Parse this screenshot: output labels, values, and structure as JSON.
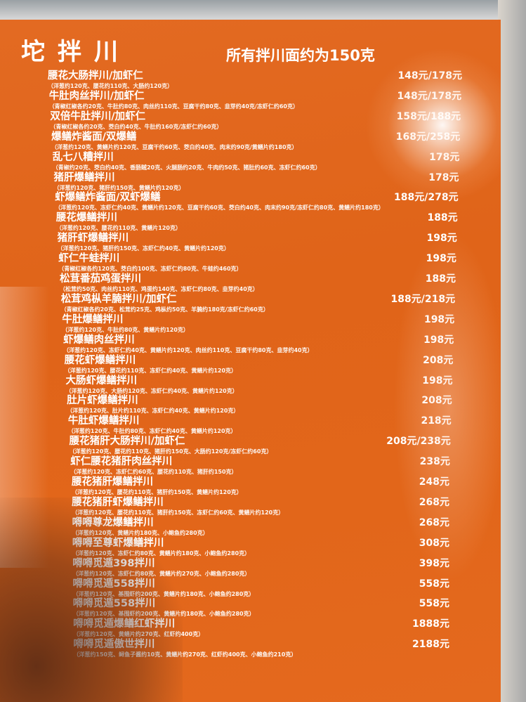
{
  "header": {
    "title": "坨拌川",
    "subtitle": "所有拌川面约为150克"
  },
  "colors": {
    "background": "#e06419",
    "text": "#ffffff"
  },
  "items": [
    {
      "name": "腰花大肠拌川/加虾仁",
      "desc": "（洋葱约120克、腰花约110克、大肠约120克）",
      "price": "148元/178元"
    },
    {
      "name": "牛肚肉丝拌川/加虾仁",
      "desc": "（青椒红椒各约20克、牛肚约80克、肉丝约110克、豆腐干约80克、韭芽约40克/冻虾仁约60克）",
      "price": "148元/178元"
    },
    {
      "name": "双倍牛肚拌川/加虾仁",
      "desc": "（青椒红椒各约20克、茭白约40克、牛肚约160克/冻虾仁约60克）",
      "price": "158元/188元"
    },
    {
      "name": "爆鳝炸酱面/双爆鳝",
      "desc": "（洋葱约120克、黄鳝片约120克、豆腐干约60克、茭白约40克、肉末约90克/黄鳝片约180克）",
      "price": "168元/258元"
    },
    {
      "name": "乱七八糟拌川",
      "desc": "（青椒约20克、茭白约40克、香肠贼20克、火腿肠约20克、牛肉约50克、猪肚约60克、冻虾仁约60克）",
      "price": "178元"
    },
    {
      "name": "猪肝爆鳝拌川",
      "desc": "（洋葱约120克、猪肝约150克、黄鳝片约120克）",
      "price": "178元"
    },
    {
      "name": "虾爆鳝炸酱面/双虾爆鳝",
      "desc": "（洋葱约120克、冻虾仁约40克、黄鳝片约120克、豆腐干约60克、茭白约40克、肉末约90克/冻虾仁约80克、黄鳝片约180克）",
      "price": "188元/278元"
    },
    {
      "name": "腰花爆鳝拌川",
      "desc": "（洋葱约120克、腰花约110克、黄鳝片120克）",
      "price": "188元"
    },
    {
      "name": "猪肝虾爆鳝拌川",
      "desc": "（洋葱约120克、猪肝约150克、冻虾仁约40克、黄鳝片约120克）",
      "price": "198元"
    },
    {
      "name": "虾仁牛蛙拌川",
      "desc": "（青椒红椒各约120克、茭白约100克、冻虾仁约80克、牛蛙约460克）",
      "price": "198元"
    },
    {
      "name": "松茸番茄鸡蛋拌川",
      "desc": "（松茸约50克、肉丝约110克、鸡蛋约140克、冻虾仁约80克、韭芽约40克）",
      "price": "188元"
    },
    {
      "name": "松茸鸡枞羊腩拌川/加虾仁",
      "desc": "（青椒红椒各约20克、松茸约25克、鸡枞约50克、羊腩约180克/冻虾仁约60克）",
      "price": "188元/218元"
    },
    {
      "name": "牛肚爆鳝拌川",
      "desc": "（洋葱约120克、牛肚约80克、黄鳝片约120克）",
      "price": "198元"
    },
    {
      "name": "虾爆鳝肉丝拌川",
      "desc": "（洋葱约120克、冻虾仁约40克、黄鳝片约120克、肉丝约110克、豆腐干约80克、韭芽约40克）",
      "price": "198元"
    },
    {
      "name": "腰花虾爆鳝拌川",
      "desc": "（洋葱约120克、腰花约110克、冻虾仁约40克、黄鳝片约120克）",
      "price": "208元"
    },
    {
      "name": "大肠虾爆鳝拌川",
      "desc": "（洋葱约120克、大肠约120克、冻虾仁约40克、黄鳝片约120克）",
      "price": "198元"
    },
    {
      "name": "肚片虾爆鳝拌川",
      "desc": "（洋葱约120克、肚片约110克、冻虾仁约40克、黄鳝片约120克）",
      "price": "208元"
    },
    {
      "name": "牛肚虾爆鳝拌川",
      "desc": "（洋葱约120克、牛肚约80克、冻虾仁约40克、黄鳝片约120克）",
      "price": "218元"
    },
    {
      "name": "腰花猪肝大肠拌川/加虾仁",
      "desc": "（洋葱约120克、腰花约110克、猪肝约150克、大肠约120克/冻虾仁约60克）",
      "price": "208元/238元"
    },
    {
      "name": "虾仁腰花猪肝肉丝拌川",
      "desc": "（洋葱约120克、冻虾仁约60克、腰花约110克、猪肝约150克）",
      "price": "238元"
    },
    {
      "name": "腰花猪肝爆鳝拌川",
      "desc": "（洋葱约120克、腰花约110克、猪肝约150克、黄鳝片约120克）",
      "price": "248元"
    },
    {
      "name": "腰花猪肝虾爆鳝拌川",
      "desc": "（洋葱约120克、腰花约110克、猪肝约150克、冻虾仁约60克、黄鳝片约120克）",
      "price": "268元"
    },
    {
      "name": "嘚嘚尊龙爆鳝拌川",
      "desc": "（洋葱约120克、黄鳝片约180克、小鲍鱼约280克）",
      "price": "268元"
    },
    {
      "name": "嘚嘚至尊虾爆鳝拌川",
      "desc": "（洋葱约120克、冻虾仁约80克、黄鳝片约180克、小鲍鱼约280克）",
      "price": "308元"
    },
    {
      "name": "嘚嘚觅遁398拌川",
      "desc": "（洋葱约120克、冻虾仁约80克、黄鳝片约270克、小鲍鱼约280克）",
      "price": "398元"
    },
    {
      "name": "嘚嘚觅遁558拌川",
      "desc": "（洋葱约120克、基围虾约200克、黄鳝片约180克、小鲍鱼约280克）",
      "price": "558元"
    },
    {
      "name": "嘚嘚觅遁558拌川",
      "desc": "（洋葱约120克、基围虾约200克、黄鳝片约180克、小鲍鱼约280克）",
      "price": "558元"
    },
    {
      "name": "嘚嘚觅遁爆鳝红虾拌川",
      "desc": "（洋葱约120克、黄鳝片约270克、红虾约400克）",
      "price": "1888元"
    },
    {
      "name": "嘚嘚觅遁傲世拌川",
      "desc": "（洋葱约150克、鲟鱼子酱约10克、黄鳝片约270克、红虾约400克、小鲍鱼约210克）",
      "price": "2188元"
    }
  ]
}
